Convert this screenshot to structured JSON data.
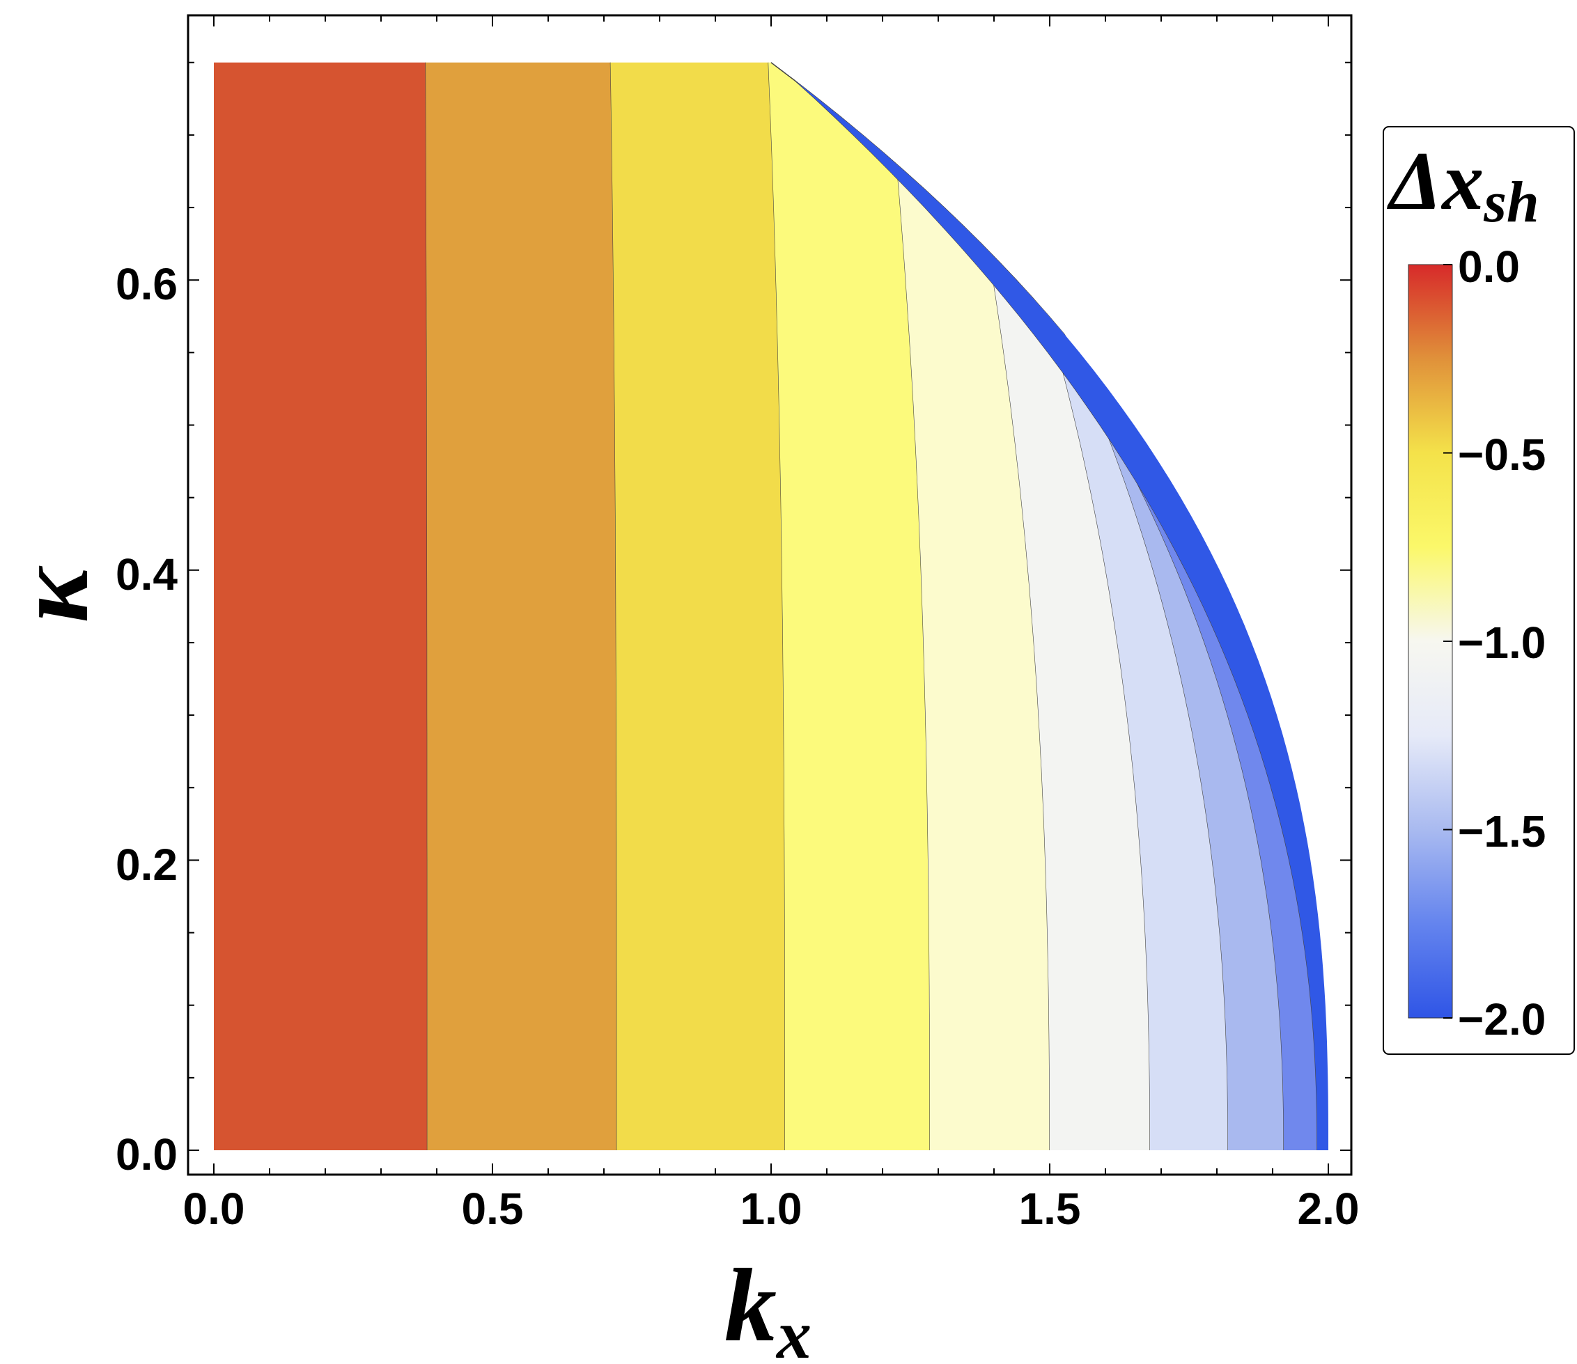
{
  "chart_data": {
    "type": "contour",
    "xlabel_main": "k",
    "xlabel_sub": "x",
    "ylabel": "κ",
    "xlim": [
      0,
      2.05
    ],
    "ylim": [
      -0.04,
      0.78
    ],
    "data_xrange": [
      0,
      2.0
    ],
    "data_yrange": [
      0,
      0.75
    ],
    "x_ticks": [
      "0.0",
      "0.5",
      "1.0",
      "1.5",
      "2.0"
    ],
    "y_ticks": [
      "0.0",
      "0.2",
      "0.4",
      "0.6"
    ],
    "x_tick_values": [
      0,
      0.5,
      1.0,
      1.5,
      2.0
    ],
    "y_tick_values": [
      0,
      0.2,
      0.4,
      0.6
    ],
    "contour_levels": [
      -0.2,
      -0.4,
      -0.6,
      -0.8,
      -1.0,
      -1.2,
      -1.4,
      -1.6,
      -1.8,
      -1.95
    ],
    "level_boundaries_kx_at_kappa0": [
      0.383,
      0.723,
      1.025,
      1.285,
      1.5,
      1.68,
      1.82,
      1.92,
      1.98,
      2.0
    ],
    "band_colors": [
      "#d65430",
      "#e0a03d",
      "#f2dc4a",
      "#fcfa7c",
      "#fcfbcd",
      "#f3f4f2",
      "#d6def6",
      "#a9b9ef",
      "#7088ed",
      "#3058e6"
    ],
    "legend": {
      "title_main": "Δx",
      "title_sub": "sh",
      "tick_labels": [
        "0.0",
        "−0.5",
        "−1.0",
        "−1.5",
        "−2.0"
      ],
      "tick_values": [
        0,
        -0.5,
        -1.0,
        -1.5,
        -2.0
      ],
      "range": [
        -2.0,
        0.0
      ],
      "gradient_colors": [
        "#d72a2a",
        "#e0913a",
        "#f4e24a",
        "#fbf86a",
        "#f7f7f0",
        "#e6eaf8",
        "#a9baf0",
        "#6484ee",
        "#2f55e6"
      ]
    },
    "grid": false
  }
}
